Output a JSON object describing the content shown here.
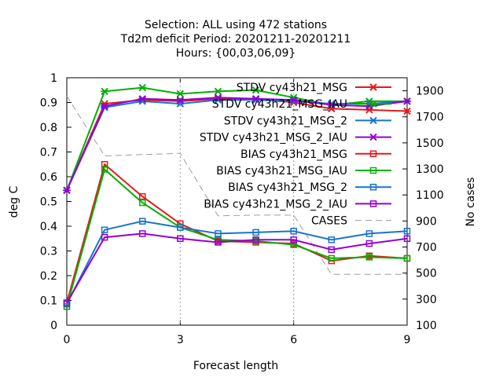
{
  "chart_data": {
    "type": "line",
    "title_lines": [
      "Selection: ALL using   472 stations",
      "Td2m deficit   Period: 20201211-20201211",
      "Hours: {00,03,06,09}"
    ],
    "xlabel": "Forecast length",
    "ylabel": "deg C",
    "y2label": "No cases",
    "xlim": [
      0,
      9
    ],
    "ylim": [
      0,
      1
    ],
    "y2lim": [
      100,
      2000
    ],
    "xticks": [
      "0",
      "3",
      "6",
      "9"
    ],
    "xtick_values": [
      0,
      3,
      6,
      9
    ],
    "yticks": [
      "0",
      "0.1",
      "0.2",
      "0.3",
      "0.4",
      "0.5",
      "0.6",
      "0.7",
      "0.8",
      "0.9",
      "1"
    ],
    "y2ticks": [
      "100",
      "300",
      "500",
      "700",
      "900",
      "1100",
      "1300",
      "1500",
      "1700",
      "1900"
    ],
    "legend_position": "top-right",
    "x": [
      0,
      1,
      2,
      3,
      4,
      5,
      6,
      7,
      8,
      9
    ],
    "series": [
      {
        "name": "STDV cy43h21_MSG",
        "axis": "y1",
        "style": "solid",
        "marker": "x",
        "color": "#e41a1c",
        "values": [
          0.545,
          0.895,
          0.91,
          0.905,
          0.915,
          0.915,
          0.9,
          0.875,
          0.87,
          0.865
        ]
      },
      {
        "name": "STDV cy43h21_MSG_IAU",
        "axis": "y1",
        "style": "solid",
        "marker": "x",
        "color": "#00b000",
        "values": [
          0.545,
          0.945,
          0.96,
          0.935,
          0.945,
          0.95,
          0.92,
          0.89,
          0.905,
          0.905
        ]
      },
      {
        "name": "STDV cy43h21_MSG_2",
        "axis": "y1",
        "style": "solid",
        "marker": "x",
        "color": "#1874cd",
        "values": [
          0.545,
          0.88,
          0.905,
          0.895,
          0.91,
          0.91,
          0.905,
          0.895,
          0.895,
          0.905
        ]
      },
      {
        "name": "STDV cy43h21_MSG_2_IAU",
        "axis": "y1",
        "style": "solid",
        "marker": "x",
        "color": "#9400d3",
        "values": [
          0.545,
          0.885,
          0.915,
          0.91,
          0.92,
          0.915,
          0.91,
          0.89,
          0.885,
          0.905
        ]
      },
      {
        "name": "BIAS cy43h21_MSG",
        "axis": "y1",
        "style": "solid",
        "marker": "square",
        "color": "#e41a1c",
        "values": [
          0.09,
          0.65,
          0.52,
          0.41,
          0.34,
          0.335,
          0.33,
          0.26,
          0.28,
          0.27
        ]
      },
      {
        "name": "BIAS cy43h21_MSG_IAU",
        "axis": "y1",
        "style": "solid",
        "marker": "square",
        "color": "#00b000",
        "values": [
          0.075,
          0.63,
          0.495,
          0.395,
          0.345,
          0.34,
          0.325,
          0.27,
          0.275,
          0.27
        ]
      },
      {
        "name": "BIAS cy43h21_MSG_2",
        "axis": "y1",
        "style": "solid",
        "marker": "square",
        "color": "#1874cd",
        "values": [
          0.085,
          0.385,
          0.42,
          0.395,
          0.37,
          0.375,
          0.38,
          0.345,
          0.37,
          0.38
        ]
      },
      {
        "name": "BIAS cy43h21_MSG_2_IAU",
        "axis": "y1",
        "style": "solid",
        "marker": "square",
        "color": "#9400d3",
        "values": [
          0.09,
          0.355,
          0.37,
          0.35,
          0.335,
          0.345,
          0.345,
          0.305,
          0.33,
          0.35
        ]
      },
      {
        "name": "CASES",
        "axis": "y2",
        "style": "dashed",
        "marker": "none",
        "color": "#9e9e9e",
        "values": [
          1860,
          1400,
          1410,
          1420,
          940,
          945,
          945,
          490,
          490,
          490
        ]
      }
    ]
  }
}
